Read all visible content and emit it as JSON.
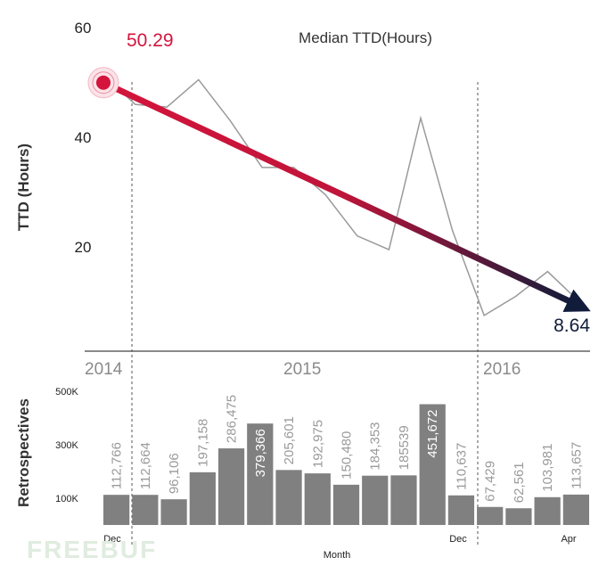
{
  "chart_data": [
    {
      "type": "line",
      "title": "Median TTD(Hours)",
      "ylabel": "TTD (Hours)",
      "ylim": [
        0,
        60
      ],
      "yticks": [
        "60",
        "40",
        "20"
      ],
      "series": [
        {
          "values": [
            51.5,
            46,
            45.5,
            50.5,
            43,
            34.5,
            34.5,
            29.5,
            22,
            19.5,
            43.5,
            23,
            7.5,
            11,
            15.5,
            10
          ]
        }
      ],
      "trend": {
        "start_label": "50.29",
        "end_label": "8.64",
        "start": 50.29,
        "end": 8.64,
        "colors": [
          "#d4143c",
          "#101c3a"
        ]
      }
    },
    {
      "type": "bar",
      "ylabel": "Retrospectives",
      "yticks": [
        "500K",
        "300K",
        "100K"
      ],
      "ylim": [
        0,
        500000
      ],
      "xlabel": "Month",
      "x_tick_labels": {
        "first": "Dec",
        "dec2015": "Dec",
        "last": "Apr"
      },
      "years": [
        "2014",
        "2015",
        "2016"
      ],
      "values": [
        112766,
        112664,
        96106,
        197158,
        286475,
        379366,
        205601,
        192975,
        150480,
        184353,
        185539,
        451672,
        110637,
        67429,
        62561,
        103981,
        113657
      ],
      "value_labels": [
        "112,766",
        "112,664",
        "96,106",
        "197,158",
        "286,475",
        "379,366",
        "205,601",
        "192,975",
        "150,480",
        "184,353",
        "185539",
        "451,672",
        "110,637",
        "67,429",
        "62,561",
        "103,981",
        "113,657"
      ],
      "bar_color": "#808080"
    }
  ],
  "watermark": "FREEBUF"
}
